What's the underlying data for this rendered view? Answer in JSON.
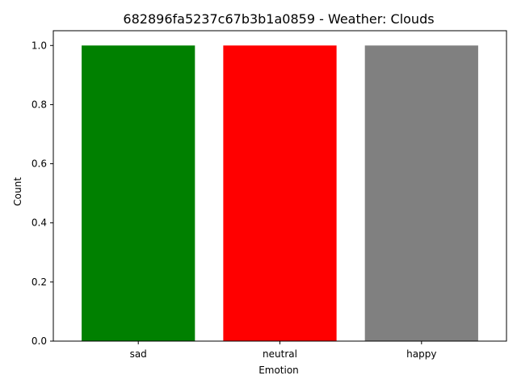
{
  "chart_data": {
    "type": "bar",
    "title": "682896fa5237c67b3b1a0859 - Weather: Clouds",
    "xlabel": "Emotion",
    "ylabel": "Count",
    "categories": [
      "sad",
      "neutral",
      "happy"
    ],
    "values": [
      1,
      1,
      1
    ],
    "colors": [
      "#008000",
      "#ff0000",
      "#808080"
    ],
    "ylim": [
      0,
      1.05
    ],
    "yticks": [
      0.0,
      0.2,
      0.4,
      0.6,
      0.8,
      1.0
    ],
    "ytick_labels": [
      "0.0",
      "0.2",
      "0.4",
      "0.6",
      "0.8",
      "1.0"
    ],
    "grid": false,
    "legend": "none"
  }
}
